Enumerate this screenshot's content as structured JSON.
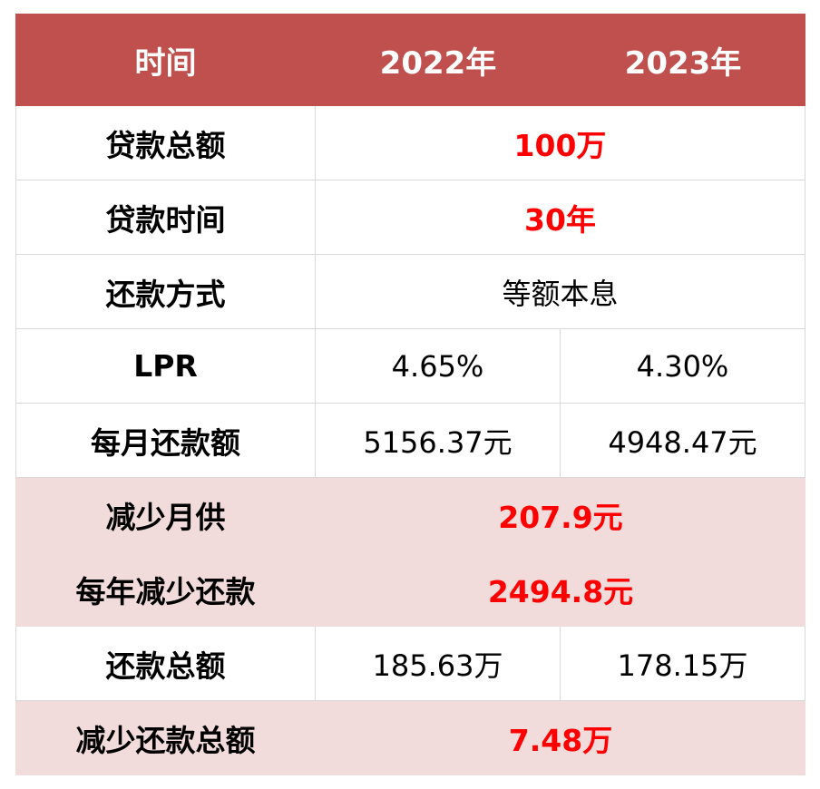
{
  "header": {
    "col1": "时间",
    "col2": "2022年",
    "col3": "2023年"
  },
  "rows": {
    "loan_total": {
      "label": "贷款总额",
      "value": "100万"
    },
    "loan_term": {
      "label": "贷款时间",
      "value": "30年"
    },
    "repay_method": {
      "label": "还款方式",
      "value": "等额本息"
    },
    "lpr": {
      "label": "LPR",
      "v2022": "4.65%",
      "v2023": "4.30%"
    },
    "monthly": {
      "label": "每月还款额",
      "v2022": "5156.37元",
      "v2023": "4948.47元"
    },
    "reduce_monthly": {
      "label": "减少月供",
      "value": "207.9元"
    },
    "reduce_yearly": {
      "label": "每年减少还款",
      "value": "2494.8元"
    },
    "repay_total": {
      "label": "还款总额",
      "v2022": "185.63万",
      "v2023": "178.15万"
    },
    "reduce_total": {
      "label": "减少还款总额",
      "value": "7.48万"
    }
  },
  "colors": {
    "header_bg": "#c0504d",
    "highlight_row_bg": "#f2dcdb",
    "highlight_text": "#ff0000"
  }
}
